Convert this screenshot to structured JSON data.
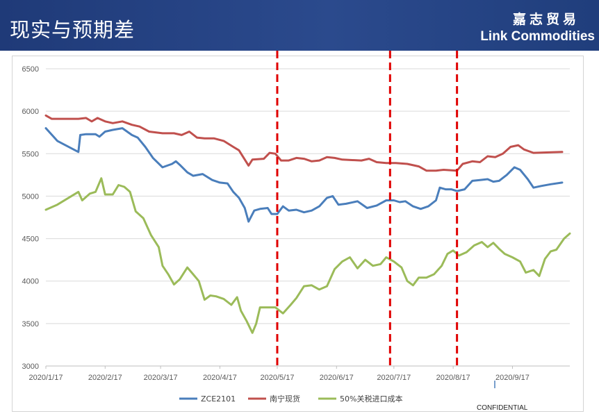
{
  "header": {
    "title": "现实与预期差",
    "brand_cn": "嘉志贸易",
    "brand_en": "Link Commodities"
  },
  "footer": {
    "confidential": "CONFIDENTIAL"
  },
  "colors": {
    "header_bg": "#27458a",
    "zce": "#4a7ebb",
    "nanning": "#c0504d",
    "import_cost": "#9bbb59",
    "marker": "#e00000"
  },
  "chart_data": {
    "type": "line",
    "title": "",
    "xlabel": "",
    "ylabel": "",
    "ylim": [
      3000,
      6500
    ],
    "yticks": [
      3000,
      3500,
      4000,
      4500,
      5000,
      5500,
      6000,
      6500
    ],
    "xlim": [
      "2020-01-17",
      "2020-10-17"
    ],
    "xticks": [
      "2020/1/17",
      "2020/2/17",
      "2020/3/17",
      "2020/4/17",
      "2020/5/17",
      "2020/6/17",
      "2020/7/17",
      "2020/8/17",
      "2020/9/17"
    ],
    "grid": "horizontal",
    "legend_position": "bottom",
    "vertical_markers": [
      "2020-05-17",
      "2020-07-15",
      "2020-08-19"
    ],
    "series": [
      {
        "name": "ZCE2101",
        "color": "#4a7ebb",
        "points": [
          [
            "2020-01-17",
            5800
          ],
          [
            "2020-01-21",
            5700
          ],
          [
            "2020-01-23",
            5650
          ],
          [
            "2020-02-03",
            5520
          ],
          [
            "2020-02-04",
            5720
          ],
          [
            "2020-02-07",
            5730
          ],
          [
            "2020-02-12",
            5730
          ],
          [
            "2020-02-14",
            5700
          ],
          [
            "2020-02-17",
            5760
          ],
          [
            "2020-02-21",
            5780
          ],
          [
            "2020-02-26",
            5800
          ],
          [
            "2020-03-02",
            5720
          ],
          [
            "2020-03-05",
            5690
          ],
          [
            "2020-03-09",
            5580
          ],
          [
            "2020-03-13",
            5450
          ],
          [
            "2020-03-18",
            5340
          ],
          [
            "2020-03-23",
            5380
          ],
          [
            "2020-03-25",
            5410
          ],
          [
            "2020-03-27",
            5370
          ],
          [
            "2020-03-31",
            5280
          ],
          [
            "2020-04-03",
            5240
          ],
          [
            "2020-04-08",
            5260
          ],
          [
            "2020-04-13",
            5190
          ],
          [
            "2020-04-17",
            5160
          ],
          [
            "2020-04-21",
            5150
          ],
          [
            "2020-04-24",
            5050
          ],
          [
            "2020-04-27",
            4980
          ],
          [
            "2020-04-30",
            4860
          ],
          [
            "2020-05-02",
            4700
          ],
          [
            "2020-05-05",
            4830
          ],
          [
            "2020-05-08",
            4850
          ],
          [
            "2020-05-12",
            4860
          ],
          [
            "2020-05-14",
            4790
          ],
          [
            "2020-05-17",
            4790
          ],
          [
            "2020-05-20",
            4880
          ],
          [
            "2020-05-23",
            4830
          ],
          [
            "2020-05-27",
            4840
          ],
          [
            "2020-05-31",
            4810
          ],
          [
            "2020-06-04",
            4830
          ],
          [
            "2020-06-08",
            4880
          ],
          [
            "2020-06-12",
            4980
          ],
          [
            "2020-06-15",
            5000
          ],
          [
            "2020-06-18",
            4900
          ],
          [
            "2020-06-22",
            4910
          ],
          [
            "2020-06-28",
            4940
          ],
          [
            "2020-07-03",
            4860
          ],
          [
            "2020-07-08",
            4890
          ],
          [
            "2020-07-13",
            4950
          ],
          [
            "2020-07-17",
            4950
          ],
          [
            "2020-07-20",
            4930
          ],
          [
            "2020-07-23",
            4940
          ],
          [
            "2020-07-27",
            4880
          ],
          [
            "2020-07-31",
            4850
          ],
          [
            "2020-08-04",
            4880
          ],
          [
            "2020-08-08",
            4950
          ],
          [
            "2020-08-10",
            5100
          ],
          [
            "2020-08-13",
            5080
          ],
          [
            "2020-08-16",
            5080
          ],
          [
            "2020-08-19",
            5060
          ],
          [
            "2020-08-23",
            5080
          ],
          [
            "2020-08-27",
            5180
          ],
          [
            "2020-08-31",
            5190
          ],
          [
            "2020-09-04",
            5200
          ],
          [
            "2020-09-07",
            5170
          ],
          [
            "2020-09-10",
            5180
          ],
          [
            "2020-09-14",
            5250
          ],
          [
            "2020-09-18",
            5340
          ],
          [
            "2020-09-21",
            5310
          ],
          [
            "2020-09-25",
            5200
          ],
          [
            "2020-09-28",
            5100
          ],
          [
            "2020-10-02",
            5120
          ],
          [
            "2020-10-07",
            5140
          ],
          [
            "2020-10-13",
            5160
          ]
        ]
      },
      {
        "name": "南宁现货",
        "color": "#c0504d",
        "points": [
          [
            "2020-01-17",
            5950
          ],
          [
            "2020-01-20",
            5910
          ],
          [
            "2020-02-03",
            5910
          ],
          [
            "2020-02-07",
            5920
          ],
          [
            "2020-02-10",
            5880
          ],
          [
            "2020-02-13",
            5920
          ],
          [
            "2020-02-17",
            5880
          ],
          [
            "2020-02-21",
            5860
          ],
          [
            "2020-02-26",
            5880
          ],
          [
            "2020-03-02",
            5840
          ],
          [
            "2020-03-06",
            5820
          ],
          [
            "2020-03-11",
            5760
          ],
          [
            "2020-03-18",
            5740
          ],
          [
            "2020-03-24",
            5740
          ],
          [
            "2020-03-28",
            5720
          ],
          [
            "2020-04-01",
            5760
          ],
          [
            "2020-04-05",
            5690
          ],
          [
            "2020-04-09",
            5680
          ],
          [
            "2020-04-14",
            5680
          ],
          [
            "2020-04-19",
            5650
          ],
          [
            "2020-04-24",
            5580
          ],
          [
            "2020-04-27",
            5540
          ],
          [
            "2020-05-02",
            5360
          ],
          [
            "2020-05-04",
            5430
          ],
          [
            "2020-05-10",
            5440
          ],
          [
            "2020-05-13",
            5510
          ],
          [
            "2020-05-16",
            5500
          ],
          [
            "2020-05-19",
            5420
          ],
          [
            "2020-05-23",
            5420
          ],
          [
            "2020-05-27",
            5450
          ],
          [
            "2020-05-31",
            5440
          ],
          [
            "2020-06-04",
            5410
          ],
          [
            "2020-06-08",
            5420
          ],
          [
            "2020-06-12",
            5460
          ],
          [
            "2020-06-16",
            5450
          ],
          [
            "2020-06-20",
            5430
          ],
          [
            "2020-06-30",
            5420
          ],
          [
            "2020-07-04",
            5440
          ],
          [
            "2020-07-08",
            5400
          ],
          [
            "2020-07-13",
            5390
          ],
          [
            "2020-07-18",
            5390
          ],
          [
            "2020-07-24",
            5380
          ],
          [
            "2020-07-30",
            5350
          ],
          [
            "2020-08-03",
            5300
          ],
          [
            "2020-08-08",
            5300
          ],
          [
            "2020-08-12",
            5310
          ],
          [
            "2020-08-19",
            5300
          ],
          [
            "2020-08-22",
            5380
          ],
          [
            "2020-08-27",
            5410
          ],
          [
            "2020-08-31",
            5400
          ],
          [
            "2020-09-04",
            5470
          ],
          [
            "2020-09-08",
            5460
          ],
          [
            "2020-09-12",
            5500
          ],
          [
            "2020-09-16",
            5580
          ],
          [
            "2020-09-20",
            5600
          ],
          [
            "2020-09-23",
            5550
          ],
          [
            "2020-09-28",
            5510
          ],
          [
            "2020-10-13",
            5520
          ]
        ]
      },
      {
        "name": "50%关税进口成本",
        "color": "#9bbb59",
        "points": [
          [
            "2020-01-17",
            4840
          ],
          [
            "2020-01-23",
            4900
          ],
          [
            "2020-02-03",
            5050
          ],
          [
            "2020-02-05",
            4950
          ],
          [
            "2020-02-09",
            5030
          ],
          [
            "2020-02-12",
            5050
          ],
          [
            "2020-02-15",
            5210
          ],
          [
            "2020-02-17",
            5020
          ],
          [
            "2020-02-21",
            5020
          ],
          [
            "2020-02-24",
            5130
          ],
          [
            "2020-02-27",
            5110
          ],
          [
            "2020-03-01",
            5050
          ],
          [
            "2020-03-04",
            4820
          ],
          [
            "2020-03-08",
            4740
          ],
          [
            "2020-03-12",
            4540
          ],
          [
            "2020-03-16",
            4400
          ],
          [
            "2020-03-18",
            4180
          ],
          [
            "2020-03-21",
            4080
          ],
          [
            "2020-03-24",
            3960
          ],
          [
            "2020-03-27",
            4020
          ],
          [
            "2020-03-31",
            4160
          ],
          [
            "2020-04-03",
            4080
          ],
          [
            "2020-04-06",
            4000
          ],
          [
            "2020-04-09",
            3780
          ],
          [
            "2020-04-12",
            3830
          ],
          [
            "2020-04-15",
            3820
          ],
          [
            "2020-04-19",
            3790
          ],
          [
            "2020-04-23",
            3720
          ],
          [
            "2020-04-26",
            3810
          ],
          [
            "2020-04-28",
            3650
          ],
          [
            "2020-05-01",
            3530
          ],
          [
            "2020-05-04",
            3390
          ],
          [
            "2020-05-06",
            3500
          ],
          [
            "2020-05-08",
            3690
          ],
          [
            "2020-05-12",
            3690
          ],
          [
            "2020-05-16",
            3690
          ],
          [
            "2020-05-20",
            3620
          ],
          [
            "2020-05-24",
            3720
          ],
          [
            "2020-05-27",
            3800
          ],
          [
            "2020-05-31",
            3940
          ],
          [
            "2020-06-04",
            3950
          ],
          [
            "2020-06-08",
            3900
          ],
          [
            "2020-06-12",
            3940
          ],
          [
            "2020-06-16",
            4140
          ],
          [
            "2020-06-20",
            4230
          ],
          [
            "2020-06-24",
            4280
          ],
          [
            "2020-06-28",
            4150
          ],
          [
            "2020-07-02",
            4250
          ],
          [
            "2020-07-06",
            4180
          ],
          [
            "2020-07-10",
            4200
          ],
          [
            "2020-07-13",
            4280
          ],
          [
            "2020-07-17",
            4230
          ],
          [
            "2020-07-21",
            4160
          ],
          [
            "2020-07-24",
            4000
          ],
          [
            "2020-07-27",
            3950
          ],
          [
            "2020-07-30",
            4040
          ],
          [
            "2020-08-03",
            4040
          ],
          [
            "2020-08-07",
            4080
          ],
          [
            "2020-08-11",
            4180
          ],
          [
            "2020-08-14",
            4320
          ],
          [
            "2020-08-17",
            4360
          ],
          [
            "2020-08-20",
            4300
          ],
          [
            "2020-08-24",
            4340
          ],
          [
            "2020-08-28",
            4420
          ],
          [
            "2020-09-01",
            4460
          ],
          [
            "2020-09-04",
            4400
          ],
          [
            "2020-09-07",
            4450
          ],
          [
            "2020-09-10",
            4380
          ],
          [
            "2020-09-13",
            4320
          ],
          [
            "2020-09-17",
            4280
          ],
          [
            "2020-09-21",
            4230
          ],
          [
            "2020-09-24",
            4100
          ],
          [
            "2020-09-28",
            4130
          ],
          [
            "2020-10-01",
            4060
          ],
          [
            "2020-10-04",
            4260
          ],
          [
            "2020-10-07",
            4350
          ],
          [
            "2020-10-10",
            4370
          ],
          [
            "2020-10-14",
            4500
          ],
          [
            "2020-10-17",
            4560
          ]
        ]
      }
    ]
  }
}
